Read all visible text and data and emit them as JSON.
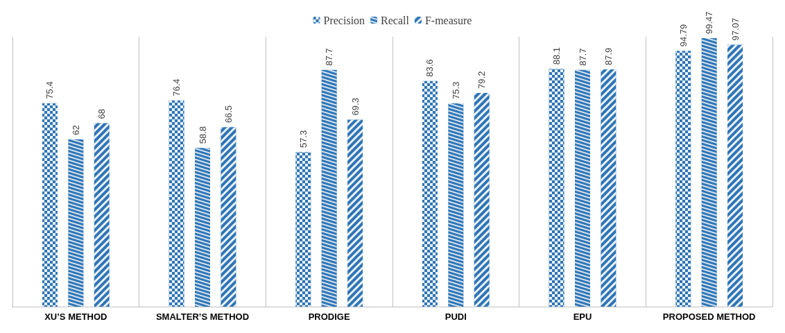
{
  "chart_data": {
    "type": "bar",
    "categories": [
      "XU’S METHOD",
      "SMALTER’S METHOD",
      "PRODIGE",
      "PUDI",
      "EPU",
      "PROPOSED METHOD"
    ],
    "series": [
      {
        "name": "Precision",
        "color": "#2e75b6",
        "values": [
          75.4,
          76.4,
          57.3,
          83.6,
          88.1,
          94.79
        ]
      },
      {
        "name": "Recall",
        "color": "#2e75b6",
        "values": [
          62,
          58.8,
          87.7,
          75.3,
          87.7,
          99.47
        ]
      },
      {
        "name": "F-measure",
        "color": "#2e75b6",
        "values": [
          68,
          66.5,
          69.3,
          79.2,
          87.9,
          97.07
        ]
      }
    ],
    "data_labels": true,
    "grid": "x",
    "legend": "top",
    "tick_labels": "x"
  }
}
